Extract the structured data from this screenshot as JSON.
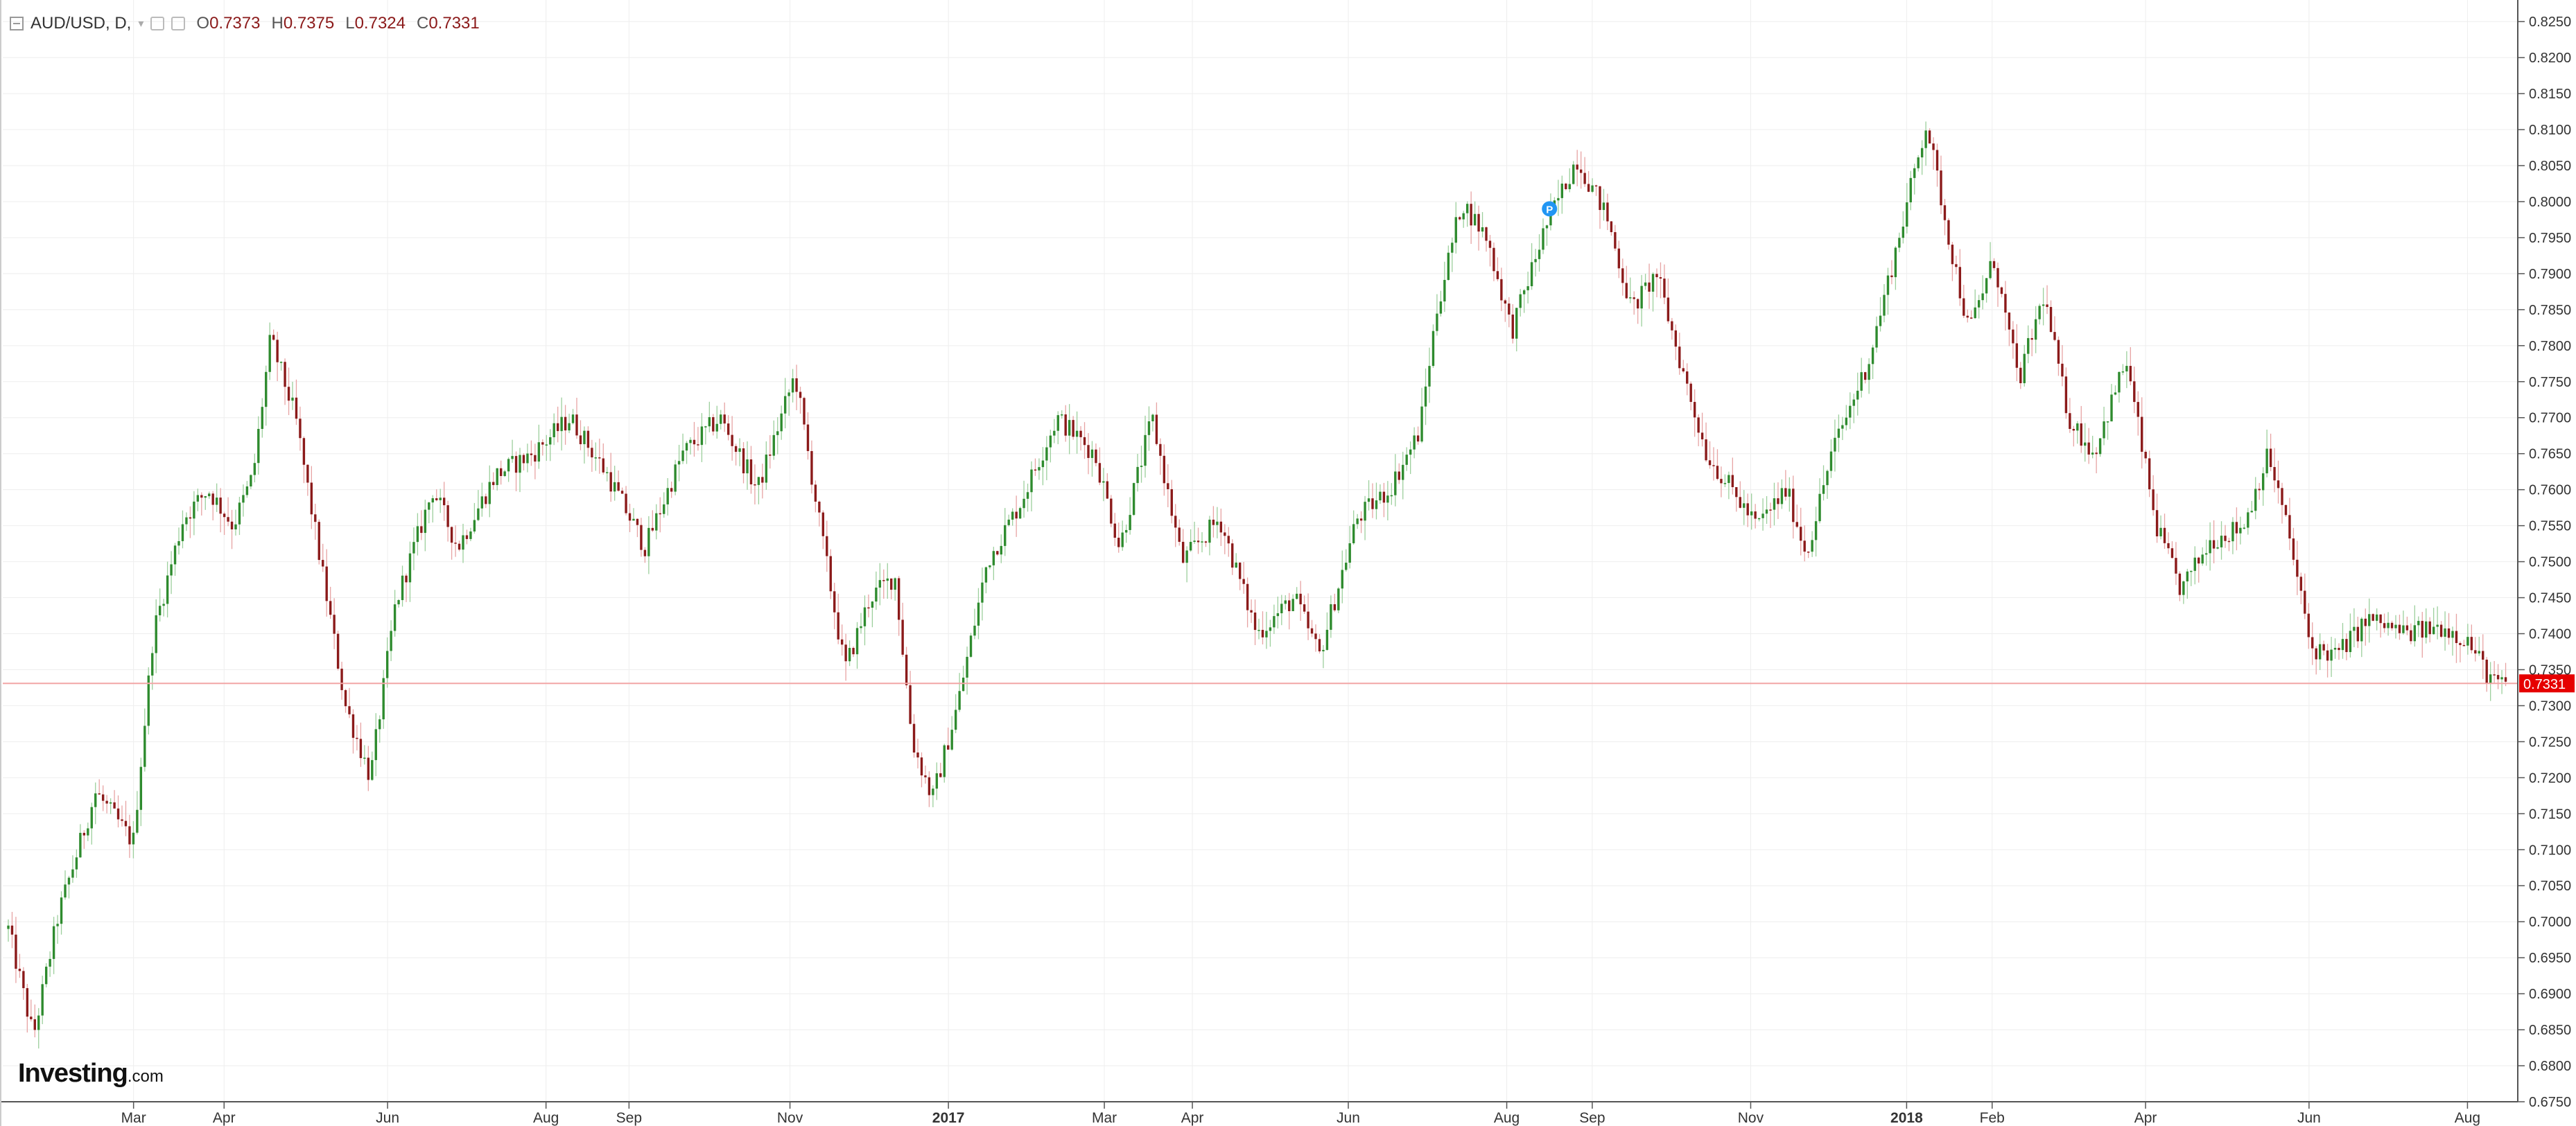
{
  "header": {
    "symbol": "AUD/USD, D,",
    "open_label": "O",
    "open": "0.7373",
    "high_label": "H",
    "high": "0.7375",
    "low_label": "L",
    "low": "0.7324",
    "close_label": "C",
    "close": "0.7331"
  },
  "branding": {
    "logo_main": "Investing",
    "logo_suffix": ".com"
  },
  "colors": {
    "up": "#2e8b2e",
    "down": "#8b1a1a",
    "price_line": "#f2a6a6",
    "price_badge": "#e60000",
    "grid": "#eeeeee"
  },
  "chart_data": {
    "type": "candlestick",
    "yrange": [
      0.675,
      0.828
    ],
    "y_ticks": [
      "0.8250",
      "0.8200",
      "0.8150",
      "0.8100",
      "0.8050",
      "0.8000",
      "0.7950",
      "0.7900",
      "0.7850",
      "0.7800",
      "0.7750",
      "0.7700",
      "0.7650",
      "0.7600",
      "0.7550",
      "0.7500",
      "0.7450",
      "0.7400",
      "0.7350",
      "0.7300",
      "0.7250",
      "0.7200",
      "0.7150",
      "0.7100",
      "0.7050",
      "0.7000",
      "0.6950",
      "0.6900",
      "0.6850",
      "0.6800",
      "0.6750"
    ],
    "x_ticks": [
      {
        "label": "Mar",
        "t": 0.052
      },
      {
        "label": "Apr",
        "t": 0.088
      },
      {
        "label": "Jun",
        "t": 0.153
      },
      {
        "label": "Aug",
        "t": 0.216
      },
      {
        "label": "Sep",
        "t": 0.249
      },
      {
        "label": "Nov",
        "t": 0.313
      },
      {
        "label": "2017",
        "t": 0.376
      },
      {
        "label": "Mar",
        "t": 0.438
      },
      {
        "label": "Apr",
        "t": 0.473
      },
      {
        "label": "Jun",
        "t": 0.535
      },
      {
        "label": "Aug",
        "t": 0.598
      },
      {
        "label": "Sep",
        "t": 0.632
      },
      {
        "label": "Nov",
        "t": 0.695
      },
      {
        "label": "2018",
        "t": 0.757
      },
      {
        "label": "Feb",
        "t": 0.791
      },
      {
        "label": "Apr",
        "t": 0.852
      },
      {
        "label": "Jun",
        "t": 0.917
      },
      {
        "label": "Aug",
        "t": 0.98
      }
    ],
    "current_price": 0.7331,
    "current_price_label": "0.7331",
    "event_marker": {
      "label": "P",
      "t": 0.615,
      "price": 0.799
    },
    "path_keyframes": [
      [
        0.0,
        0.699
      ],
      [
        0.01,
        0.684
      ],
      [
        0.02,
        0.701
      ],
      [
        0.035,
        0.718
      ],
      [
        0.05,
        0.711
      ],
      [
        0.058,
        0.74
      ],
      [
        0.07,
        0.756
      ],
      [
        0.08,
        0.76
      ],
      [
        0.09,
        0.755
      ],
      [
        0.098,
        0.762
      ],
      [
        0.105,
        0.781
      ],
      [
        0.115,
        0.77
      ],
      [
        0.125,
        0.75
      ],
      [
        0.135,
        0.73
      ],
      [
        0.145,
        0.72
      ],
      [
        0.155,
        0.744
      ],
      [
        0.17,
        0.76
      ],
      [
        0.18,
        0.752
      ],
      [
        0.195,
        0.762
      ],
      [
        0.21,
        0.765
      ],
      [
        0.225,
        0.77
      ],
      [
        0.24,
        0.762
      ],
      [
        0.255,
        0.752
      ],
      [
        0.27,
        0.765
      ],
      [
        0.285,
        0.77
      ],
      [
        0.3,
        0.76
      ],
      [
        0.315,
        0.776
      ],
      [
        0.325,
        0.755
      ],
      [
        0.335,
        0.735
      ],
      [
        0.345,
        0.745
      ],
      [
        0.355,
        0.748
      ],
      [
        0.362,
        0.725
      ],
      [
        0.37,
        0.717
      ],
      [
        0.38,
        0.73
      ],
      [
        0.392,
        0.75
      ],
      [
        0.405,
        0.758
      ],
      [
        0.42,
        0.77
      ],
      [
        0.435,
        0.765
      ],
      [
        0.445,
        0.752
      ],
      [
        0.458,
        0.77
      ],
      [
        0.47,
        0.75
      ],
      [
        0.485,
        0.756
      ],
      [
        0.5,
        0.74
      ],
      [
        0.515,
        0.745
      ],
      [
        0.525,
        0.737
      ],
      [
        0.54,
        0.756
      ],
      [
        0.553,
        0.76
      ],
      [
        0.565,
        0.768
      ],
      [
        0.572,
        0.785
      ],
      [
        0.582,
        0.8
      ],
      [
        0.592,
        0.795
      ],
      [
        0.602,
        0.782
      ],
      [
        0.615,
        0.796
      ],
      [
        0.628,
        0.806
      ],
      [
        0.64,
        0.798
      ],
      [
        0.65,
        0.785
      ],
      [
        0.66,
        0.79
      ],
      [
        0.67,
        0.777
      ],
      [
        0.68,
        0.765
      ],
      [
        0.69,
        0.76
      ],
      [
        0.7,
        0.755
      ],
      [
        0.712,
        0.76
      ],
      [
        0.72,
        0.751
      ],
      [
        0.73,
        0.765
      ],
      [
        0.745,
        0.778
      ],
      [
        0.757,
        0.795
      ],
      [
        0.768,
        0.811
      ],
      [
        0.777,
        0.795
      ],
      [
        0.785,
        0.782
      ],
      [
        0.795,
        0.792
      ],
      [
        0.805,
        0.775
      ],
      [
        0.815,
        0.787
      ],
      [
        0.825,
        0.77
      ],
      [
        0.835,
        0.765
      ],
      [
        0.848,
        0.778
      ],
      [
        0.86,
        0.755
      ],
      [
        0.87,
        0.746
      ],
      [
        0.882,
        0.753
      ],
      [
        0.895,
        0.755
      ],
      [
        0.905,
        0.765
      ],
      [
        0.913,
        0.754
      ],
      [
        0.922,
        0.738
      ],
      [
        0.932,
        0.737
      ],
      [
        0.945,
        0.742
      ],
      [
        0.96,
        0.74
      ],
      [
        0.975,
        0.741
      ],
      [
        0.985,
        0.739
      ],
      [
        0.995,
        0.7331
      ]
    ],
    "grid": true
  }
}
